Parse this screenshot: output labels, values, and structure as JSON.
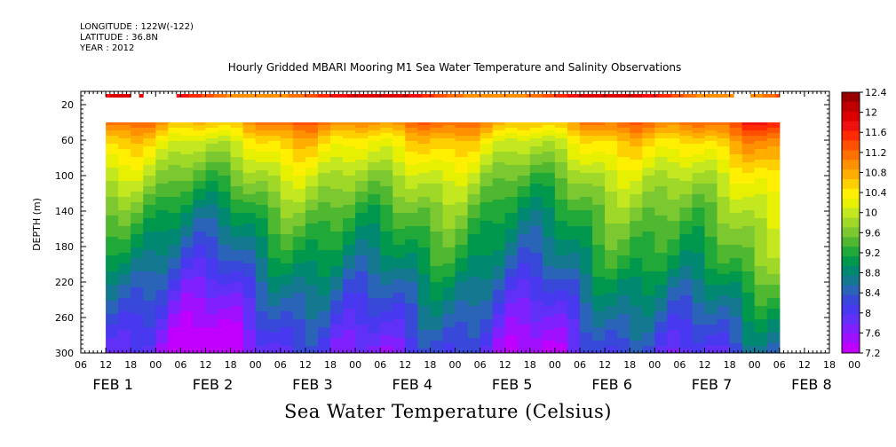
{
  "header": {
    "longitude": "LONGITUDE : 122W(-122)",
    "latitude": "LATITUDE : 36.8N",
    "year": "YEAR : 2012"
  },
  "chart_data": {
    "type": "heatmap",
    "title": "Hourly Gridded MBARI Mooring M1 Sea Water Temperature and Salinity Observations",
    "subtitle": "Sea Water Temperature (Celsius)",
    "ylabel": "DEPTH (m)",
    "ylim": [
      300,
      0
    ],
    "y_ticks": [
      20,
      60,
      100,
      140,
      180,
      220,
      260,
      300
    ],
    "x_hour_ticks": [
      "06",
      "12",
      "18",
      "00",
      "06",
      "12",
      "18",
      "00",
      "06",
      "12",
      "18",
      "00",
      "06",
      "12",
      "18",
      "00",
      "06",
      "12",
      "18",
      "00",
      "06",
      "12",
      "18",
      "00",
      "06",
      "12",
      "18",
      "00",
      "06",
      "12",
      "18",
      "00"
    ],
    "x_day_labels": [
      "FEB 1",
      "FEB 2",
      "FEB 3",
      "FEB 4",
      "FEB 5",
      "FEB 6",
      "FEB 7",
      "FEB 8"
    ],
    "data_start": "FEB 1 12:00",
    "data_end": "FEB 8 06:00",
    "colorbar_labels": [
      "12.4",
      "12",
      "11.6",
      "11.2",
      "10.8",
      "10.4",
      "10",
      "9.6",
      "9.2",
      "8.8",
      "8.4",
      "8",
      "7.6",
      "7.2"
    ],
    "color_levels": [
      12.4,
      12.2,
      12.0,
      11.8,
      11.6,
      11.4,
      11.2,
      11.0,
      10.8,
      10.6,
      10.4,
      10.2,
      10.0,
      9.8,
      9.6,
      9.4,
      9.2,
      9.0,
      8.8,
      8.6,
      8.4,
      8.2,
      8.0,
      7.8,
      7.6,
      7.4,
      7.2
    ],
    "colors": [
      "#9a0000",
      "#c00000",
      "#dd0000",
      "#f01010",
      "#ff2a00",
      "#ff4f00",
      "#ff7000",
      "#ff9000",
      "#ffae00",
      "#ffd000",
      "#ffef00",
      "#e6f000",
      "#c4e820",
      "#a0d828",
      "#7cc830",
      "#50b830",
      "#20a838",
      "#00984c",
      "#008870",
      "#147890",
      "#2a64b8",
      "#3848d8",
      "#4838f0",
      "#6030f8",
      "#8020ff",
      "#a010ff",
      "#c000ff"
    ],
    "surface_depth_m": 10,
    "surface_temp_c": 12.0,
    "surface_gaps": [
      [
        "FEB 1 18:00",
        "FEB 1 19:30"
      ],
      [
        "FEB 1 20:30",
        "FEB 2 05:00"
      ],
      [
        "FEB 7 19:00",
        "FEB 7 23:00"
      ]
    ],
    "profile_depth_range_m": [
      40,
      300
    ],
    "profile_depth_m": [
      40,
      60,
      100,
      140,
      180,
      220,
      260,
      300
    ],
    "profile_temp_c": [
      11.0,
      10.4,
      9.8,
      9.2,
      8.7,
      8.2,
      7.8,
      7.4
    ]
  }
}
